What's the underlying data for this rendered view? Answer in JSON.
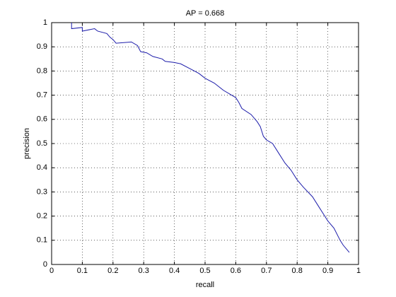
{
  "chart_data": {
    "type": "line",
    "title": "AP = 0.668",
    "x_label": "recall",
    "y_label": "precision",
    "x": [
      0.065,
      0.065,
      0.1,
      0.1,
      0.14,
      0.15,
      0.18,
      0.19,
      0.2,
      0.21,
      0.26,
      0.28,
      0.29,
      0.31,
      0.33,
      0.36,
      0.37,
      0.4,
      0.42,
      0.45,
      0.48,
      0.5,
      0.53,
      0.56,
      0.6,
      0.61,
      0.62,
      0.65,
      0.67,
      0.68,
      0.69,
      0.7,
      0.72,
      0.74,
      0.76,
      0.78,
      0.8,
      0.82,
      0.85,
      0.87,
      0.89,
      0.9,
      0.92,
      0.94,
      0.95,
      0.97
    ],
    "values": [
      1.0,
      0.975,
      0.98,
      0.965,
      0.975,
      0.965,
      0.955,
      0.94,
      0.93,
      0.915,
      0.92,
      0.905,
      0.88,
      0.875,
      0.86,
      0.85,
      0.84,
      0.835,
      0.83,
      0.81,
      0.79,
      0.77,
      0.75,
      0.72,
      0.69,
      0.67,
      0.645,
      0.62,
      0.59,
      0.57,
      0.53,
      0.515,
      0.5,
      0.46,
      0.42,
      0.39,
      0.35,
      0.32,
      0.28,
      0.24,
      0.2,
      0.18,
      0.15,
      0.1,
      0.08,
      0.05
    ],
    "color": "#1c1caa",
    "xlim": [
      0,
      1
    ],
    "ylim": [
      0,
      1
    ],
    "xticks": [
      0,
      0.1,
      0.2,
      0.3,
      0.4,
      0.5,
      0.6,
      0.7,
      0.8,
      0.9,
      1
    ],
    "yticks": [
      0,
      0.1,
      0.2,
      0.3,
      0.4,
      0.5,
      0.6,
      0.7,
      0.8,
      0.9,
      1
    ],
    "grid": true
  }
}
